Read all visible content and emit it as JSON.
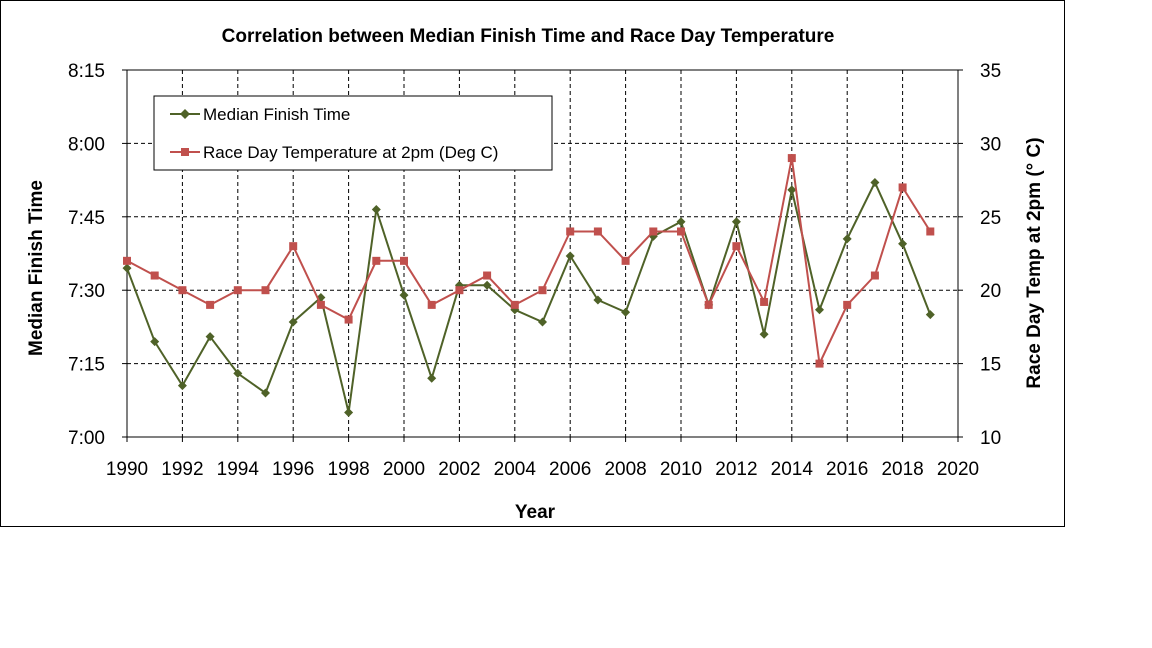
{
  "chart_data": {
    "type": "line",
    "title": "Correlation between Median Finish Time and  Race Day Temperature",
    "xlabel": "Year",
    "ylabel_left": "Median Finish Time",
    "ylabel_right": "Race Day Temp at 2pm (° C)",
    "xlim": [
      1990,
      2020
    ],
    "x_ticks": [
      "1990",
      "1992",
      "1994",
      "1996",
      "1998",
      "2000",
      "2002",
      "2004",
      "2006",
      "2008",
      "2010",
      "2012",
      "2014",
      "2016",
      "2018",
      "2020"
    ],
    "y_left_range_minutes": [
      420,
      495
    ],
    "y_left_ticks": [
      {
        "label": "8:15",
        "minutes": 495
      },
      {
        "label": "8:00",
        "minutes": 480
      },
      {
        "label": "7:45",
        "minutes": 465
      },
      {
        "label": "7:30",
        "minutes": 450
      },
      {
        "label": "7:15",
        "minutes": 435
      },
      {
        "label": "7:00",
        "minutes": 420
      }
    ],
    "y_right_range": [
      10,
      35
    ],
    "y_right_ticks": [
      "35",
      "30",
      "25",
      "20",
      "15",
      "10"
    ],
    "grid": true,
    "legend_position": "top-left",
    "series": [
      {
        "name": "Median Finish Time",
        "axis": "left",
        "color": "#4f6228",
        "marker": "diamond",
        "x": [
          1990,
          1991,
          1992,
          1993,
          1994,
          1995,
          1996,
          1997,
          1998,
          1999,
          2000,
          2001,
          2002,
          2003,
          2004,
          2005,
          2006,
          2007,
          2008,
          2009,
          2010,
          2011,
          2012,
          2013,
          2014,
          2015,
          2016,
          2017,
          2018,
          2019
        ],
        "values": [
          454.5,
          439.5,
          430.5,
          440.5,
          433.0,
          429.0,
          443.5,
          448.5,
          425.0,
          466.5,
          449.0,
          432.0,
          451.0,
          451.0,
          446.0,
          443.5,
          457.0,
          448.0,
          445.5,
          461.0,
          464.0,
          447.0,
          464.0,
          441.0,
          470.5,
          446.0,
          460.5,
          472.0,
          459.5,
          445.0
        ]
      },
      {
        "name": "Race Day Temperature at 2pm (Deg C)",
        "axis": "right",
        "color": "#c0504d",
        "marker": "square",
        "x": [
          1990,
          1991,
          1992,
          1993,
          1994,
          1995,
          1996,
          1997,
          1998,
          1999,
          2000,
          2001,
          2002,
          2003,
          2004,
          2005,
          2006,
          2007,
          2008,
          2009,
          2010,
          2011,
          2012,
          2013,
          2014,
          2015,
          2016,
          2017,
          2018,
          2019
        ],
        "values": [
          22,
          21,
          20,
          19,
          20,
          20,
          23,
          19,
          18,
          22,
          22,
          19,
          20,
          21,
          19,
          20,
          24,
          24,
          22,
          24,
          24,
          19,
          23,
          19.2,
          29,
          15,
          19,
          21,
          27,
          24
        ]
      }
    ]
  }
}
